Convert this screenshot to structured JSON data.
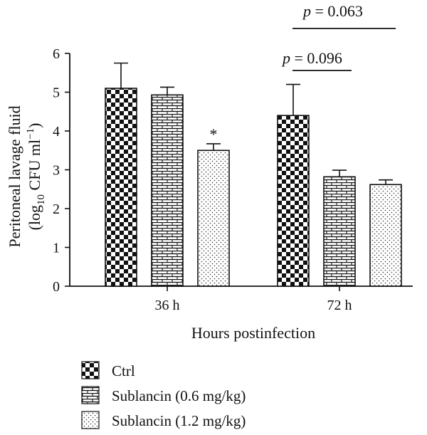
{
  "chart_data": {
    "type": "bar",
    "categories": [
      "36 h",
      "72 h"
    ],
    "series": [
      {
        "name": "Ctrl",
        "values": [
          5.1,
          4.4
        ],
        "errors": [
          0.65,
          0.8
        ],
        "pattern": "checker"
      },
      {
        "name": "Sublancin (0.6 mg/kg)",
        "values": [
          4.93,
          2.82
        ],
        "errors": [
          0.2,
          0.17
        ],
        "pattern": "brick"
      },
      {
        "name": "Sublancin (1.2 mg/kg)",
        "values": [
          3.5,
          2.62
        ],
        "errors": [
          0.17,
          0.12
        ],
        "pattern": "dots"
      }
    ],
    "xlabel": "Hours postinfection",
    "ylabel_line1": "Peritoneal lavage fluid",
    "ylabel_line2_prefix": "(log",
    "ylabel_line2_sub": "10",
    "ylabel_line2_mid": " CFU ml",
    "ylabel_line2_sup": "−1",
    "ylabel_line2_suffix": ")",
    "ylim": [
      0,
      6
    ],
    "yticks": [
      "0",
      "1",
      "2",
      "3",
      "4",
      "5",
      "6"
    ],
    "significance_marker": "*",
    "annotations": [
      {
        "p_label": "p",
        "text": " = 0.096"
      },
      {
        "p_label": "p",
        "text": " = 0.063"
      }
    ],
    "legend_position": "bottom-left",
    "grid": false
  }
}
